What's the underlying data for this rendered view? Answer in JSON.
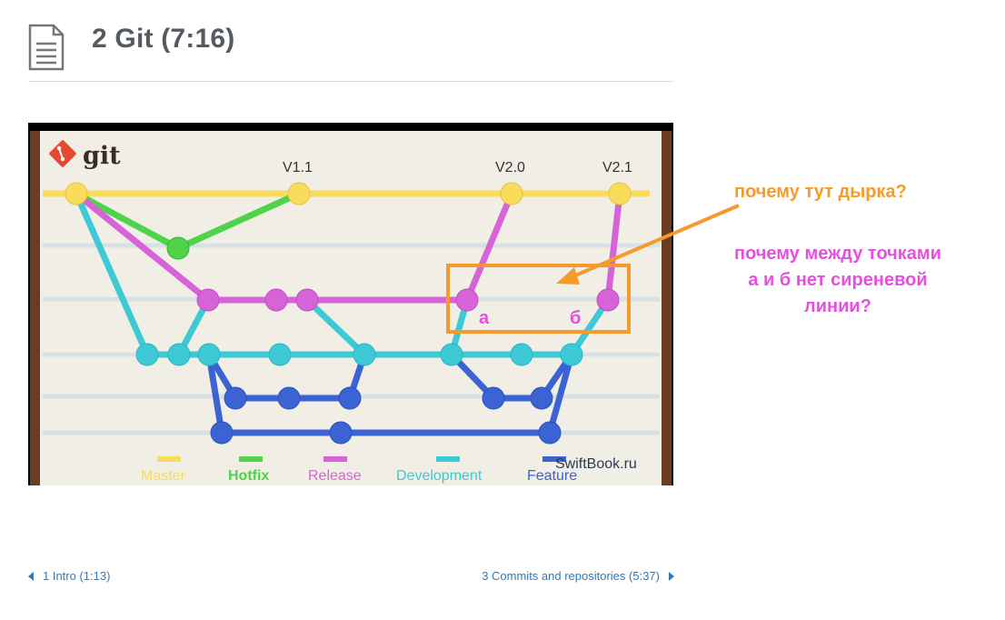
{
  "lesson": {
    "title": "2 Git (7:16)",
    "icon": "document-icon"
  },
  "video": {
    "logo_text": "git",
    "watermark": "SwiftBook.ru",
    "versions": [
      "V1.1",
      "V2.0",
      "V2.1"
    ],
    "point_labels": [
      "а",
      "б"
    ],
    "legend": [
      {
        "label": "Master",
        "color": "#f9dc5c"
      },
      {
        "label": "Hotfix",
        "color": "#4ed34a"
      },
      {
        "label": "Release",
        "color": "#d664d8"
      },
      {
        "label": "Development",
        "color": "#3ec9d6"
      },
      {
        "label": "Feature",
        "color": "#3c63d3"
      }
    ]
  },
  "annotations": {
    "question_hole": "почему тут дырка?",
    "question_line": [
      "почему между точками",
      "а и б нет сиреневой",
      "линии?"
    ],
    "highlight_color": "#f79a2c",
    "question_line_color": "#e64fe0"
  },
  "navigation": {
    "prev": "1 Intro (1:13)",
    "next": "3 Commits and repositories (5:37)"
  }
}
